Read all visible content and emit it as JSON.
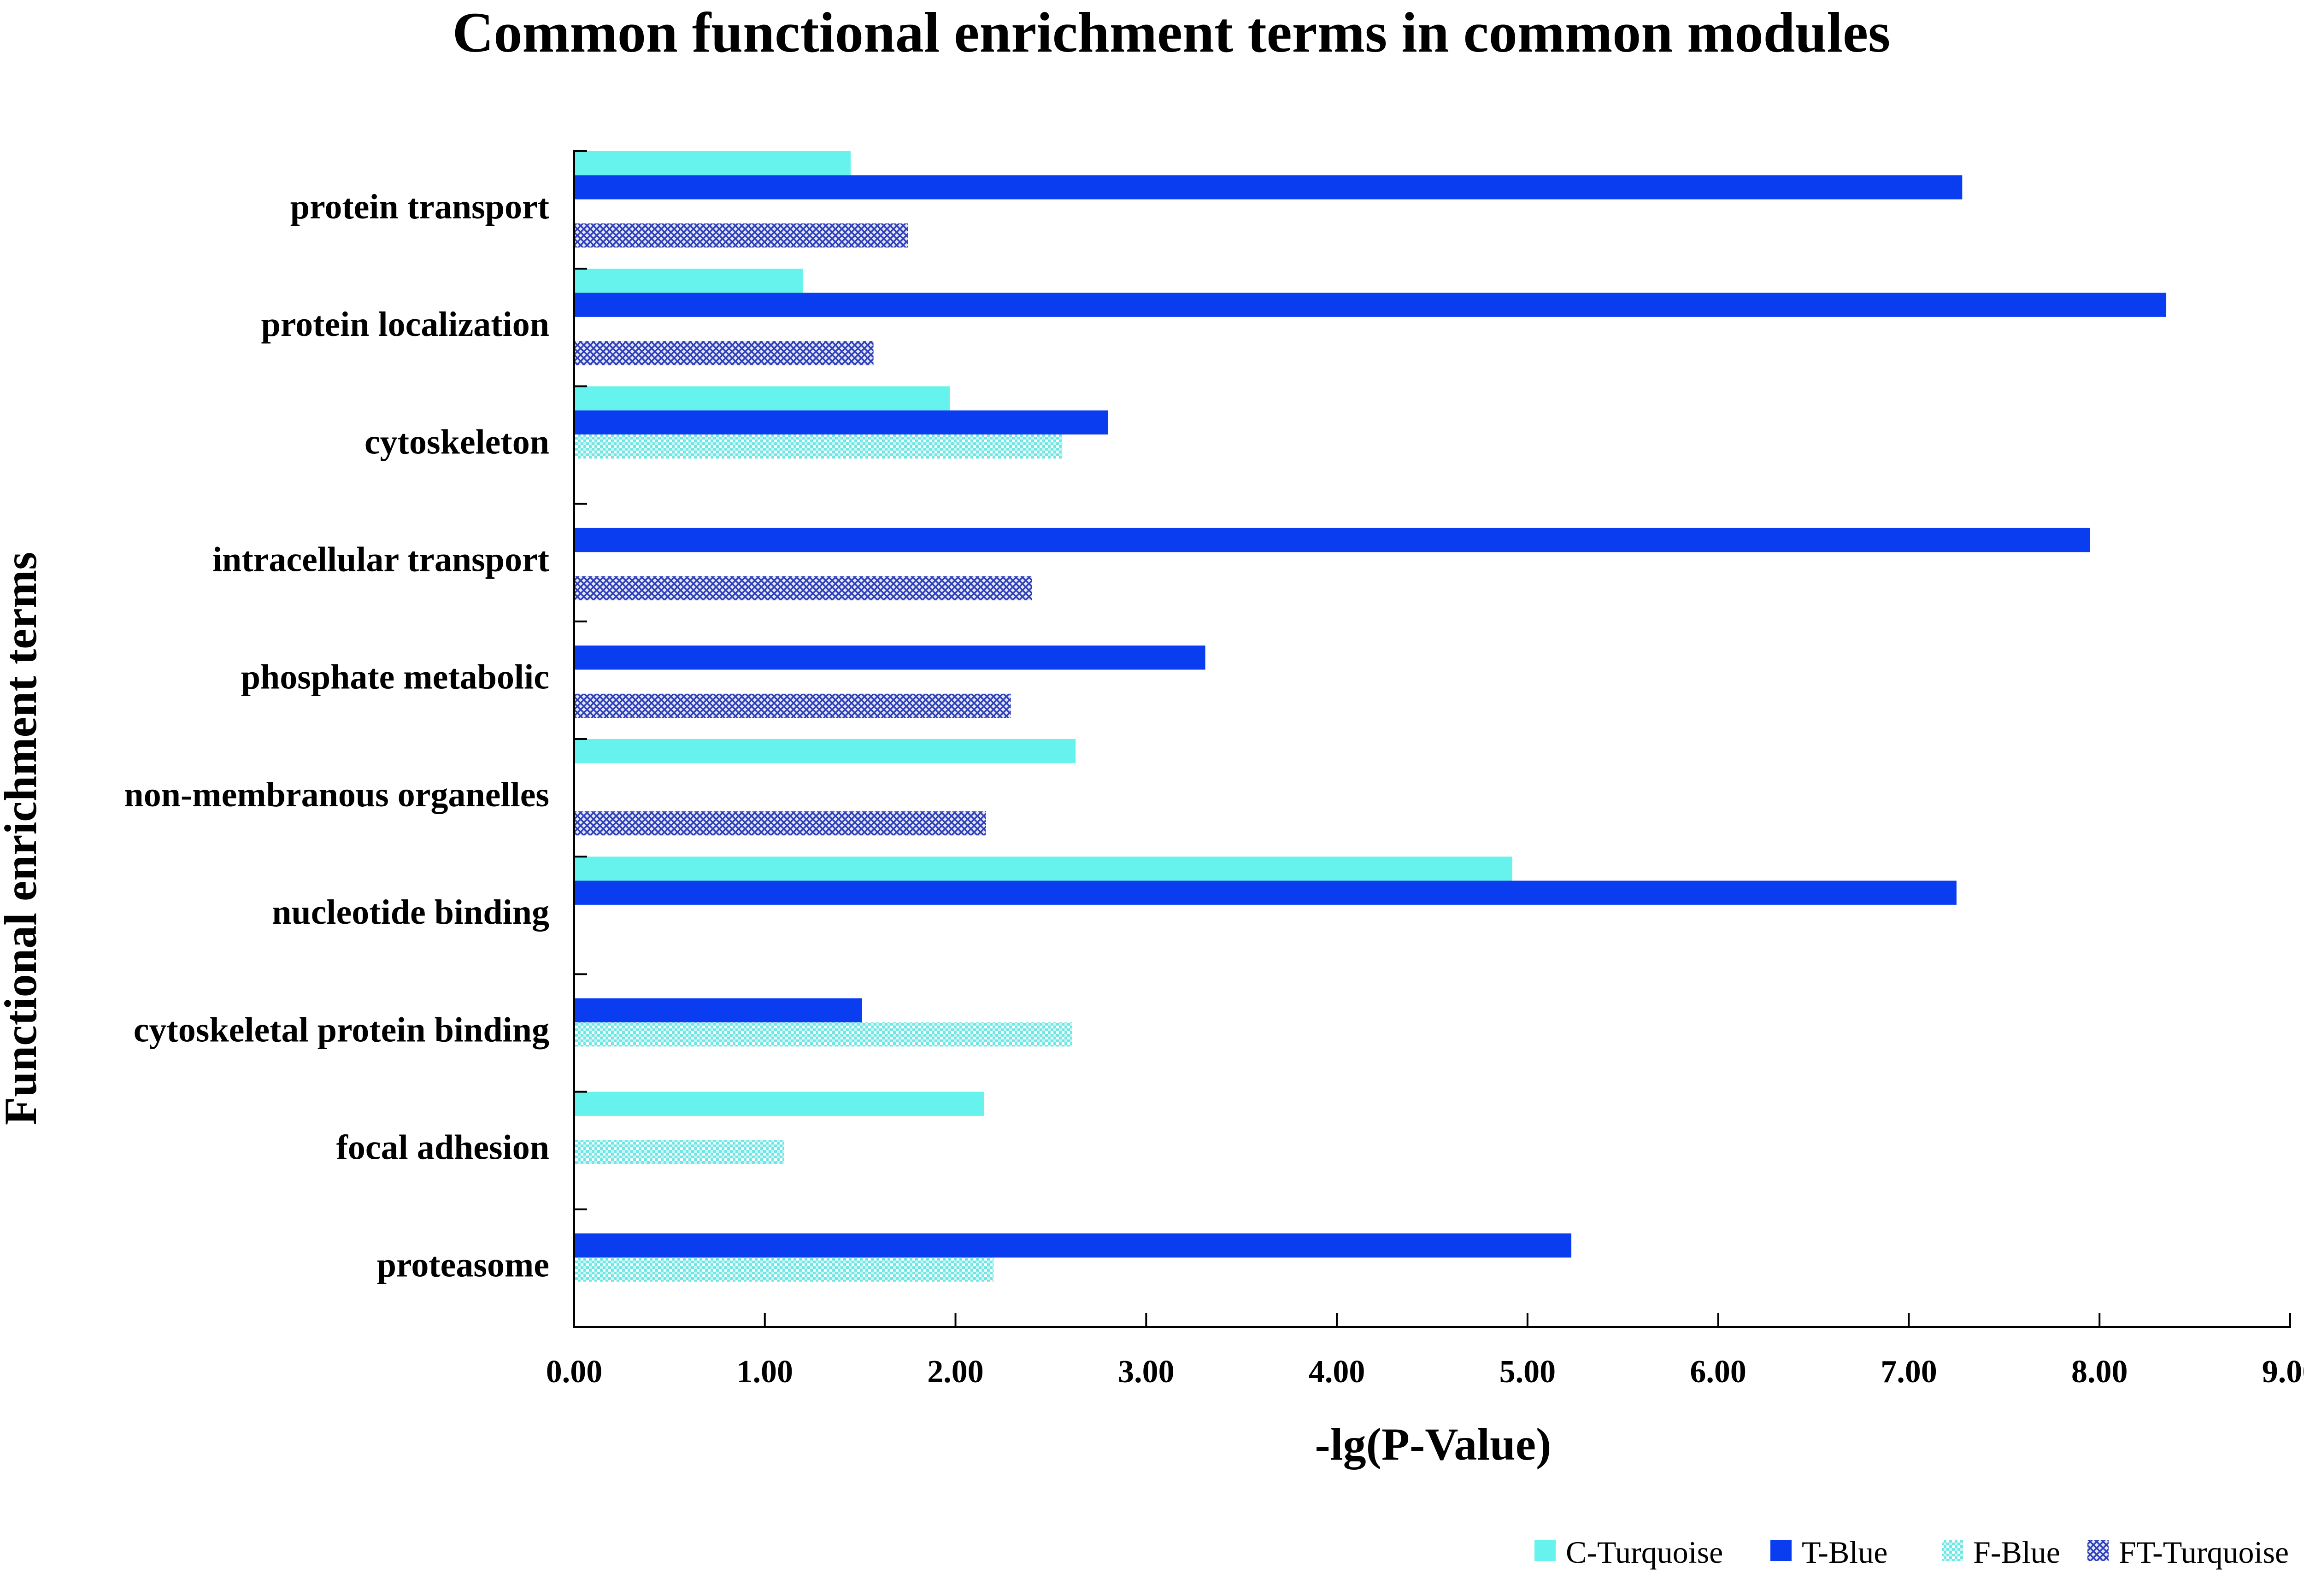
{
  "chart_data": {
    "type": "bar",
    "orientation": "horizontal",
    "title": "Common functional enrichment terms in common modules",
    "xlabel": "-lg(P-Value)",
    "ylabel": "Functional enrichment terms",
    "xlim": [
      0,
      9
    ],
    "xticks": [
      "0.00",
      "1.00",
      "2.00",
      "3.00",
      "4.00",
      "5.00",
      "6.00",
      "7.00",
      "8.00",
      "9.00"
    ],
    "grid": false,
    "legend_position": "bottom-right",
    "categories": [
      "protein transport",
      "protein localization",
      "cytoskeleton",
      "intracellular transport",
      "phosphate metabolic",
      "non-membranous organelles",
      "nucleotide binding",
      "cytoskeletal protein binding",
      "focal adhesion",
      "proteasome"
    ],
    "series": [
      {
        "name": "C-Turquoise",
        "color": "#66F3ED",
        "pattern": "solid",
        "values": [
          1.45,
          1.2,
          1.97,
          null,
          null,
          2.63,
          4.92,
          null,
          2.15,
          null
        ]
      },
      {
        "name": "T-Blue",
        "color": "#0A3CF0",
        "pattern": "solid",
        "values": [
          7.28,
          8.35,
          2.8,
          7.95,
          3.31,
          null,
          7.25,
          1.51,
          null,
          5.23
        ]
      },
      {
        "name": "F-Blue",
        "color": "#6FE6E3",
        "pattern": "light-checker",
        "values": [
          null,
          null,
          2.56,
          null,
          null,
          null,
          null,
          2.61,
          1.1,
          2.2
        ]
      },
      {
        "name": "FT-Turquoise",
        "color": "#2E3FB8",
        "pattern": "crosshatch",
        "values": [
          1.75,
          1.57,
          null,
          2.4,
          2.29,
          2.16,
          null,
          null,
          null,
          null
        ]
      }
    ]
  }
}
